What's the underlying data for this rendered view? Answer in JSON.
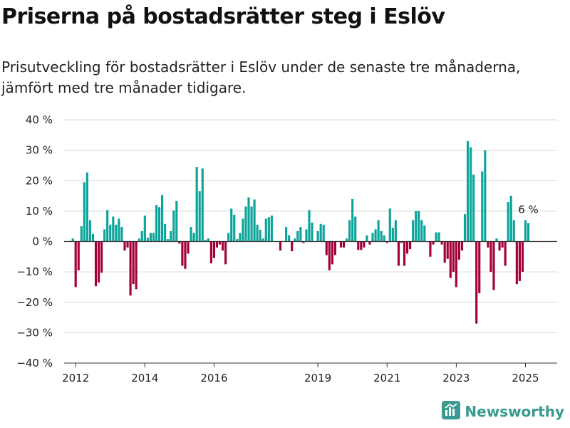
{
  "header": {
    "title": "Priserna på bostadsrätter steg i Eslöv",
    "subtitle": "Prisutveckling för bostadsrätter i Eslöv under de senaste tre månaderna, jämfört med tre månader tidigare."
  },
  "brand": {
    "name": "Newsworthy",
    "icon": "newsworthy-logo-icon"
  },
  "colors": {
    "positive": "#0ca49a",
    "negative": "#a3003a",
    "grid": "#d9d9d9",
    "zero_line": "#333333",
    "text": "#222222"
  },
  "chart_data": {
    "type": "bar",
    "title": "Priserna på bostadsrätter steg i Eslöv",
    "subtitle": "Prisutveckling för bostadsrätter i Eslöv under de senaste tre månaderna, jämfört med tre månader tidigare.",
    "xlabel": "",
    "ylabel": "",
    "ylim": [
      -40,
      40
    ],
    "yticks": [
      40,
      30,
      20,
      10,
      0,
      -10,
      -20,
      -30,
      -40
    ],
    "ytick_labels": [
      "40 %",
      "30 %",
      "20 %",
      "10 %",
      "0 %",
      "−10 %",
      "−20 %",
      "−30 %",
      "−40 %"
    ],
    "xticks": [
      "2012",
      "2014",
      "2016",
      "2019",
      "2021",
      "2023",
      "2025"
    ],
    "x_range": [
      "2011-09",
      "2025-12"
    ],
    "grid": true,
    "annotations": [
      {
        "x": "2025-02",
        "y": 6,
        "text": "6 %"
      }
    ],
    "series": [
      {
        "values": [
          {
            "x": "2011-12",
            "y": 1
          },
          {
            "x": "2012-01",
            "y": -15
          },
          {
            "x": "2012-02",
            "y": -9.5
          },
          {
            "x": "2012-03",
            "y": 5
          },
          {
            "x": "2012-04",
            "y": 19.5
          },
          {
            "x": "2012-05",
            "y": 22.7
          },
          {
            "x": "2012-06",
            "y": 7
          },
          {
            "x": "2012-07",
            "y": 2.5
          },
          {
            "x": "2012-08",
            "y": -14.7
          },
          {
            "x": "2012-09",
            "y": -13.5
          },
          {
            "x": "2012-10",
            "y": -10.3
          },
          {
            "x": "2012-11",
            "y": 4
          },
          {
            "x": "2012-12",
            "y": 10.3
          },
          {
            "x": "2013-01",
            "y": 5.5
          },
          {
            "x": "2013-02",
            "y": 8.2
          },
          {
            "x": "2013-03",
            "y": 5.5
          },
          {
            "x": "2013-04",
            "y": 7.5
          },
          {
            "x": "2013-05",
            "y": 4.8
          },
          {
            "x": "2013-06",
            "y": -3
          },
          {
            "x": "2013-07",
            "y": -2
          },
          {
            "x": "2013-08",
            "y": -17.8
          },
          {
            "x": "2013-09",
            "y": -14
          },
          {
            "x": "2013-10",
            "y": -15.7
          },
          {
            "x": "2013-11",
            "y": 1
          },
          {
            "x": "2013-12",
            "y": 3.4
          },
          {
            "x": "2014-01",
            "y": 8.5
          },
          {
            "x": "2014-02",
            "y": 1.2
          },
          {
            "x": "2014-03",
            "y": 2.8
          },
          {
            "x": "2014-04",
            "y": 2.8
          },
          {
            "x": "2014-05",
            "y": 12
          },
          {
            "x": "2014-06",
            "y": 11.3
          },
          {
            "x": "2014-07",
            "y": 15.3
          },
          {
            "x": "2014-08",
            "y": 5.8
          },
          {
            "x": "2014-09",
            "y": 0.8
          },
          {
            "x": "2014-10",
            "y": 3.4
          },
          {
            "x": "2014-11",
            "y": 10.2
          },
          {
            "x": "2014-12",
            "y": 13.3
          },
          {
            "x": "2015-01",
            "y": -0.7
          },
          {
            "x": "2015-02",
            "y": -8
          },
          {
            "x": "2015-03",
            "y": -9
          },
          {
            "x": "2015-04",
            "y": -4
          },
          {
            "x": "2015-05",
            "y": 4.8
          },
          {
            "x": "2015-06",
            "y": 2.8
          },
          {
            "x": "2015-07",
            "y": 24.5
          },
          {
            "x": "2015-08",
            "y": 16.5
          },
          {
            "x": "2015-09",
            "y": 24
          },
          {
            "x": "2015-10",
            "y": 0.5
          },
          {
            "x": "2015-11",
            "y": 1
          },
          {
            "x": "2015-12",
            "y": -7.2
          },
          {
            "x": "2016-01",
            "y": -5.5
          },
          {
            "x": "2016-02",
            "y": -2
          },
          {
            "x": "2016-03",
            "y": -1
          },
          {
            "x": "2016-04",
            "y": -3
          },
          {
            "x": "2016-05",
            "y": -7.5
          },
          {
            "x": "2016-06",
            "y": 2.8
          },
          {
            "x": "2016-07",
            "y": 10.8
          },
          {
            "x": "2016-08",
            "y": 8.8
          },
          {
            "x": "2016-09",
            "y": 0.8
          },
          {
            "x": "2016-10",
            "y": 2.8
          },
          {
            "x": "2016-11",
            "y": 7.5
          },
          {
            "x": "2016-12",
            "y": 11.5
          },
          {
            "x": "2017-01",
            "y": 14.5
          },
          {
            "x": "2017-02",
            "y": 11.5
          },
          {
            "x": "2017-03",
            "y": 13.8
          },
          {
            "x": "2017-04",
            "y": 5.5
          },
          {
            "x": "2017-05",
            "y": 3.8
          },
          {
            "x": "2017-06",
            "y": 1
          },
          {
            "x": "2017-07",
            "y": 7.5
          },
          {
            "x": "2017-08",
            "y": 8
          },
          {
            "x": "2017-09",
            "y": 8.5
          },
          {
            "x": "2017-12",
            "y": -3
          },
          {
            "x": "2018-02",
            "y": 4.8
          },
          {
            "x": "2018-03",
            "y": 2
          },
          {
            "x": "2018-04",
            "y": -3.2
          },
          {
            "x": "2018-05",
            "y": 1
          },
          {
            "x": "2018-06",
            "y": 3.4
          },
          {
            "x": "2018-07",
            "y": 4.8
          },
          {
            "x": "2018-08",
            "y": -0.5
          },
          {
            "x": "2018-09",
            "y": 4
          },
          {
            "x": "2018-10",
            "y": 10.3
          },
          {
            "x": "2018-11",
            "y": 6.2
          },
          {
            "x": "2019-01",
            "y": 3.4
          },
          {
            "x": "2019-02",
            "y": 5.8
          },
          {
            "x": "2019-03",
            "y": 5.5
          },
          {
            "x": "2019-04",
            "y": -4.5
          },
          {
            "x": "2019-05",
            "y": -9.5
          },
          {
            "x": "2019-06",
            "y": -7.5
          },
          {
            "x": "2019-07",
            "y": -4.5
          },
          {
            "x": "2019-09",
            "y": -2
          },
          {
            "x": "2019-10",
            "y": -2
          },
          {
            "x": "2019-11",
            "y": 1
          },
          {
            "x": "2019-12",
            "y": 7
          },
          {
            "x": "2020-01",
            "y": 14
          },
          {
            "x": "2020-02",
            "y": 8.2
          },
          {
            "x": "2020-03",
            "y": -2.8
          },
          {
            "x": "2020-04",
            "y": -2.8
          },
          {
            "x": "2020-05",
            "y": -2
          },
          {
            "x": "2020-06",
            "y": 2
          },
          {
            "x": "2020-07",
            "y": -1
          },
          {
            "x": "2020-08",
            "y": 2.8
          },
          {
            "x": "2020-09",
            "y": 4
          },
          {
            "x": "2020-10",
            "y": 7
          },
          {
            "x": "2020-11",
            "y": 3.4
          },
          {
            "x": "2020-12",
            "y": 2
          },
          {
            "x": "2021-01",
            "y": -0.5
          },
          {
            "x": "2021-02",
            "y": 10.8
          },
          {
            "x": "2021-03",
            "y": 4.5
          },
          {
            "x": "2021-04",
            "y": 7
          },
          {
            "x": "2021-05",
            "y": -8
          },
          {
            "x": "2021-06",
            "y": -0.5
          },
          {
            "x": "2021-07",
            "y": -8
          },
          {
            "x": "2021-08",
            "y": -4
          },
          {
            "x": "2021-09",
            "y": -2.5
          },
          {
            "x": "2021-10",
            "y": 7
          },
          {
            "x": "2021-11",
            "y": 10
          },
          {
            "x": "2021-12",
            "y": 10
          },
          {
            "x": "2022-01",
            "y": 7
          },
          {
            "x": "2022-02",
            "y": 5.2
          },
          {
            "x": "2022-04",
            "y": -5
          },
          {
            "x": "2022-05",
            "y": -1
          },
          {
            "x": "2022-06",
            "y": 3
          },
          {
            "x": "2022-07",
            "y": 3
          },
          {
            "x": "2022-08",
            "y": -1
          },
          {
            "x": "2022-09",
            "y": -7
          },
          {
            "x": "2022-10",
            "y": -5.7
          },
          {
            "x": "2022-11",
            "y": -12
          },
          {
            "x": "2022-12",
            "y": -10
          },
          {
            "x": "2023-01",
            "y": -15
          },
          {
            "x": "2023-02",
            "y": -6
          },
          {
            "x": "2023-03",
            "y": -3
          },
          {
            "x": "2023-04",
            "y": 9
          },
          {
            "x": "2023-05",
            "y": 33
          },
          {
            "x": "2023-06",
            "y": 31
          },
          {
            "x": "2023-07",
            "y": 22
          },
          {
            "x": "2023-08",
            "y": -27
          },
          {
            "x": "2023-09",
            "y": -17
          },
          {
            "x": "2023-10",
            "y": 23
          },
          {
            "x": "2023-11",
            "y": 30
          },
          {
            "x": "2023-12",
            "y": -2
          },
          {
            "x": "2024-01",
            "y": -10
          },
          {
            "x": "2024-02",
            "y": -16
          },
          {
            "x": "2024-03",
            "y": 1
          },
          {
            "x": "2024-04",
            "y": -3
          },
          {
            "x": "2024-05",
            "y": -2
          },
          {
            "x": "2024-06",
            "y": -8
          },
          {
            "x": "2024-07",
            "y": 13
          },
          {
            "x": "2024-08",
            "y": 15
          },
          {
            "x": "2024-09",
            "y": 7
          },
          {
            "x": "2024-10",
            "y": -14
          },
          {
            "x": "2024-11",
            "y": -13
          },
          {
            "x": "2024-12",
            "y": -10
          },
          {
            "x": "2025-01",
            "y": 7
          },
          {
            "x": "2025-02",
            "y": 6
          }
        ]
      }
    ]
  }
}
